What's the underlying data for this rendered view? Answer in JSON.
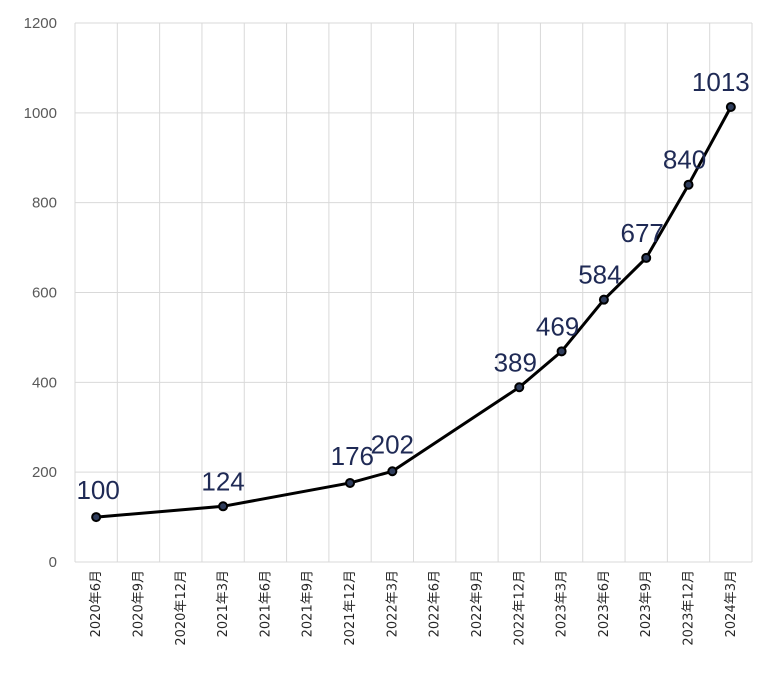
{
  "chart_data": {
    "type": "line",
    "title": "",
    "xlabel": "",
    "ylabel": "",
    "ylim": [
      0,
      1200
    ],
    "yticks": [
      0,
      200,
      400,
      600,
      800,
      1000,
      1200
    ],
    "grid": true,
    "categories": [
      "2020年6月",
      "2020年9月",
      "2020年12月",
      "2021年3月",
      "2021年6月",
      "2021年9月",
      "2021年12月",
      "2022年3月",
      "2022年6月",
      "2022年9月",
      "2022年12月",
      "2023年3月",
      "2023年6月",
      "2023年9月",
      "2023年12月",
      "2024年3月"
    ],
    "series": [
      {
        "points": [
          {
            "x": "2020年6月",
            "y": 100
          },
          {
            "x": "2021年3月",
            "y": 124
          },
          {
            "x": "2021年12月",
            "y": 176
          },
          {
            "x": "2022年3月",
            "y": 202
          },
          {
            "x": "2022年12月",
            "y": 389
          },
          {
            "x": "2023年3月",
            "y": 469
          },
          {
            "x": "2023年6月",
            "y": 584
          },
          {
            "x": "2023年9月",
            "y": 677
          },
          {
            "x": "2023年12月",
            "y": 840
          },
          {
            "x": "2024年3月",
            "y": 1013
          }
        ],
        "color": "#000000",
        "marker_color": "#2f3d5c"
      }
    ],
    "data_label_color": "#1f2a55"
  }
}
